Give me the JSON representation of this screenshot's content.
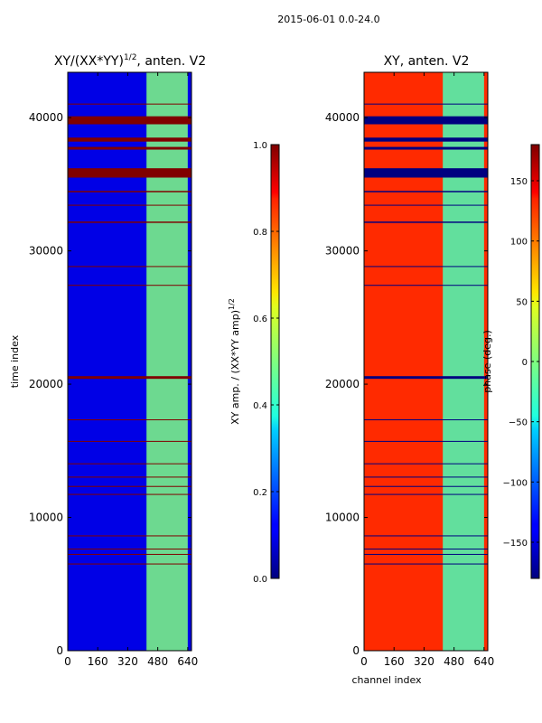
{
  "suptitle": "2015-06-01 0.0-24.0",
  "chart_data": [
    {
      "type": "heatmap",
      "title_main": "XY/(XX*YY)",
      "title_exponent": "1/2",
      "title_suffix": ", anten. V2",
      "xlabel": "",
      "ylabel": "time index",
      "xlim": [
        0,
        660
      ],
      "ylim": [
        0,
        43400
      ],
      "xticks": [
        0,
        160,
        320,
        480,
        640
      ],
      "yticks": [
        0,
        10000,
        20000,
        30000,
        40000
      ],
      "colormap": "jet",
      "clim": [
        0.0,
        1.0
      ],
      "colorbar": {
        "label_main": "XY amp. / (XX*YY amp)",
        "label_exponent": "1/2",
        "ticks": [
          "0.0",
          "0.2",
          "0.4",
          "0.6",
          "0.8",
          "1.0"
        ],
        "tick_values": [
          0.0,
          0.2,
          0.4,
          0.6,
          0.8,
          1.0
        ]
      },
      "base_value": 0.1,
      "high_band_channels": [
        420,
        640
      ],
      "high_band_value": 0.5,
      "saturated_rows_value": 1.0,
      "saturated_rows": [
        [
          39500,
          40100
        ],
        [
          35500,
          36200
        ],
        [
          38200,
          38500
        ],
        [
          37600,
          37800
        ],
        [
          41000,
          41050
        ],
        [
          34400,
          34500
        ],
        [
          33400,
          33460
        ],
        [
          32100,
          32200
        ],
        [
          28800,
          28860
        ],
        [
          27400,
          27450
        ],
        [
          20400,
          20600
        ],
        [
          17300,
          17360
        ],
        [
          15700,
          15740
        ],
        [
          14000,
          14060
        ],
        [
          13000,
          13060
        ],
        [
          12300,
          12360
        ],
        [
          11700,
          11760
        ],
        [
          8600,
          8650
        ],
        [
          7600,
          7660
        ],
        [
          7200,
          7260
        ],
        [
          6500,
          6540
        ]
      ]
    },
    {
      "type": "heatmap",
      "title": "XY, anten. V2",
      "xlabel": "channel index",
      "ylabel": "",
      "xlim": [
        0,
        660
      ],
      "ylim": [
        0,
        43400
      ],
      "xticks": [
        0,
        160,
        320,
        480,
        640
      ],
      "yticks": [
        0,
        10000,
        20000,
        30000,
        40000
      ],
      "colormap": "jet",
      "clim": [
        -180,
        180
      ],
      "colorbar": {
        "label": "phase (deg.)",
        "ticks": [
          "−150",
          "−100",
          "−50",
          "0",
          "50",
          "100",
          "150"
        ],
        "tick_values": [
          -150,
          -100,
          -50,
          0,
          50,
          100,
          150
        ]
      },
      "base_value": 120,
      "high_band_channels": [
        420,
        640
      ],
      "high_band_value": -20,
      "gap_rows_value": -180,
      "gap_rows": [
        [
          39500,
          40100
        ],
        [
          35500,
          36200
        ],
        [
          38200,
          38500
        ],
        [
          37600,
          37800
        ],
        [
          41000,
          41050
        ],
        [
          34400,
          34500
        ],
        [
          33400,
          33460
        ],
        [
          32100,
          32200
        ],
        [
          28800,
          28860
        ],
        [
          27400,
          27450
        ],
        [
          20400,
          20600
        ],
        [
          17300,
          17360
        ],
        [
          15700,
          15740
        ],
        [
          14000,
          14060
        ],
        [
          13000,
          13060
        ],
        [
          12300,
          12360
        ],
        [
          11700,
          11760
        ],
        [
          8600,
          8650
        ],
        [
          7600,
          7660
        ],
        [
          7200,
          7260
        ],
        [
          6500,
          6540
        ]
      ]
    }
  ]
}
